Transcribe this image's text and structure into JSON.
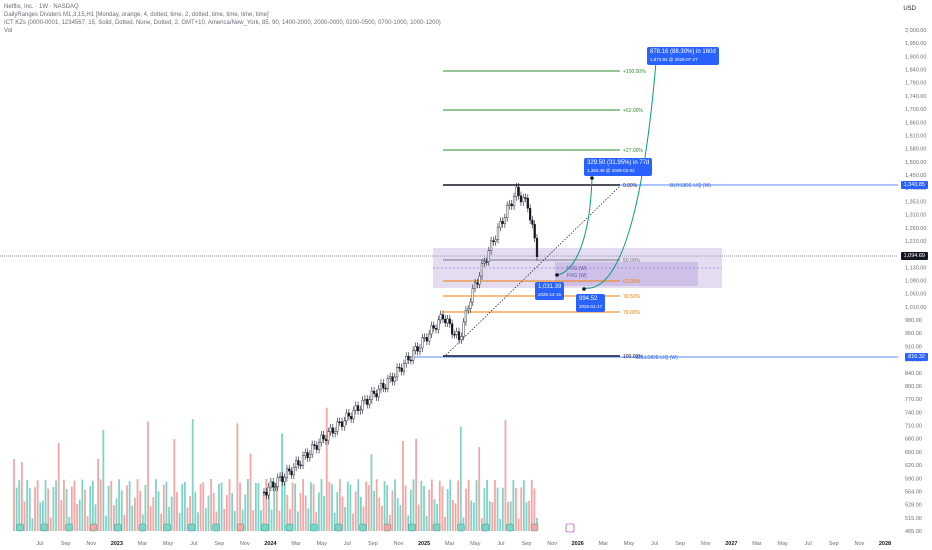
{
  "header": {
    "title": "Netflix, Inc. · 1W · NASDAQ",
    "line2": "DailyRanges Dividers M1,3,15,H1 [Monday, orange, 4, dotted, time, 2, dotted, time, time, time, time]",
    "line3": "ICT KZs (0000-0001, 1234567, 15, Solid, Dotted, None, Dotted, 2, GMT+10, America/New_York, 85, 90, 1400-2000, 2000-0000, 0200-0500, 0700-1000, 1000-1200)",
    "line4": "Vol"
  },
  "currency": "USD",
  "colors": {
    "up": "#089981",
    "down": "#131722",
    "vol_up": "#7fd3c6",
    "vol_down": "#f4a6a6",
    "fib_green": "#2e8b2e",
    "fib_orange": "#f57c00",
    "liq_blue": "#2962ff",
    "zone": "#b39ddb"
  },
  "chart_data": {
    "type": "candlestick",
    "title": "Netflix, Inc. · 1W · NASDAQ",
    "y_ticks": [
      "2,000.00",
      "1,950.00",
      "1,900.00",
      "1,840.00",
      "1,790.00",
      "1,740.00",
      "1,700.00",
      "1,660.00",
      "1,610.00",
      "1,580.00",
      "1,500.00",
      "1,450.00",
      "1,400.00",
      "1,353.00",
      "1,310.00",
      "1,260.00",
      "1,210.00",
      "1,170.00",
      "1,130.00",
      "1,090.00",
      "1,050.00",
      "1,010.00",
      "980.00",
      "950.00",
      "910.00",
      "870.00",
      "840.00",
      "800.00",
      "770.00",
      "740.00",
      "710.00",
      "680.00",
      "650.00",
      "620.00",
      "590.00",
      "564.00",
      "528.00",
      "515.00",
      "495.00"
    ],
    "x_ticks": [
      "Jul",
      "Sep",
      "Nov",
      "2023",
      "Mar",
      "May",
      "Jul",
      "Sep",
      "Nov",
      "2024",
      "Mar",
      "May",
      "Jul",
      "Sep",
      "Nov",
      "2025",
      "Mar",
      "May",
      "Jul",
      "Sep",
      "Nov",
      "2026",
      "Mar",
      "May",
      "Jul",
      "Sep",
      "Nov",
      "2027",
      "Mar",
      "May",
      "Jul",
      "Sep",
      "Nov",
      "2028"
    ],
    "last_price": "1,094.69",
    "buyside_liq": {
      "label": "BUYSIDE LIQ (W)",
      "price": "1,343.85"
    },
    "sellside_liq": {
      "label": "SELLSIDE LIQ (W)",
      "price": "816.32"
    },
    "fib_levels": [
      {
        "label": "+100.00%",
        "color": "green"
      },
      {
        "label": "+62.00%",
        "color": "green"
      },
      {
        "label": "+27.00%",
        "color": "green"
      },
      {
        "label": "0.00%",
        "color": "black"
      },
      {
        "label": "50.00%",
        "color": "gray"
      },
      {
        "label": "62.00%",
        "color": "orange"
      },
      {
        "label": "70.50%",
        "color": "orange"
      },
      {
        "label": "79.00%",
        "color": "orange"
      },
      {
        "label": "100.00%",
        "color": "black"
      }
    ],
    "zone_labels": [
      "FVG (W)",
      "FVG (W)"
    ],
    "projections": [
      {
        "headline": "878.16 (88.30%) in 160d",
        "sub": "1,872.84 @ 2026-07-27"
      },
      {
        "headline": "329.50 (31.95%) in 77d",
        "sub": "1,360.49 @ 2026-03-02"
      },
      {
        "headline": "1,031.39",
        "sub": "2025-12-15"
      },
      {
        "headline": "994.52",
        "sub": "2026-01-17"
      }
    ]
  }
}
